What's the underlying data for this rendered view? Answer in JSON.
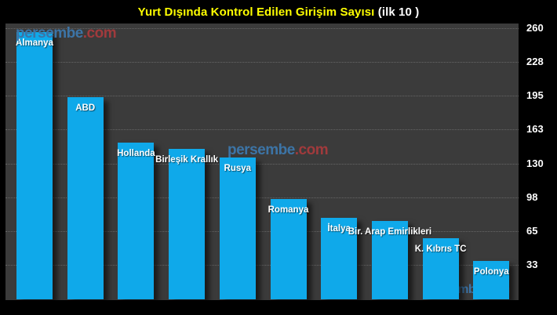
{
  "title": {
    "main": "Yurt Dışında Kontrol Edilen Girişim Sayısı ",
    "suffix": "(ilk 10 )"
  },
  "watermark": {
    "name": "persembe",
    "tld": ".com"
  },
  "colors": {
    "background": "#000000",
    "plot_background": "#3B3B3B",
    "bar": "#0FA9EA",
    "grid": "#9A9A9A",
    "title_main": "#FFFF00",
    "title_suffix": "#FFFFFF",
    "axis_text": "#FFFFFF",
    "bar_label": "#FFFFFF",
    "wm_name": "#3C74A6",
    "wm_tld": "#A03A3C"
  },
  "chart_data": {
    "type": "bar",
    "title": "Yurt Dışında Kontrol Edilen Girişim Sayısı (ilk 10 )",
    "categories": [
      "Almanya",
      "ABD",
      "Hollanda",
      "Birleşik Krallık",
      "Rusya",
      "Romanya",
      "İtalya",
      "Bir. Arap Emirlikleri",
      "K. Kıbrıs TC",
      "Polonya"
    ],
    "values": [
      256,
      194,
      150,
      144,
      136,
      96,
      78,
      75,
      59,
      37
    ],
    "yticks": [
      260,
      228,
      195,
      163,
      130,
      98,
      65,
      33
    ],
    "ylim": [
      0,
      265
    ],
    "xlabel": "",
    "ylabel": "",
    "axis_side": "right",
    "grid": "horizontal-dotted",
    "legend": "none",
    "bar_label_position": "inside-top"
  }
}
